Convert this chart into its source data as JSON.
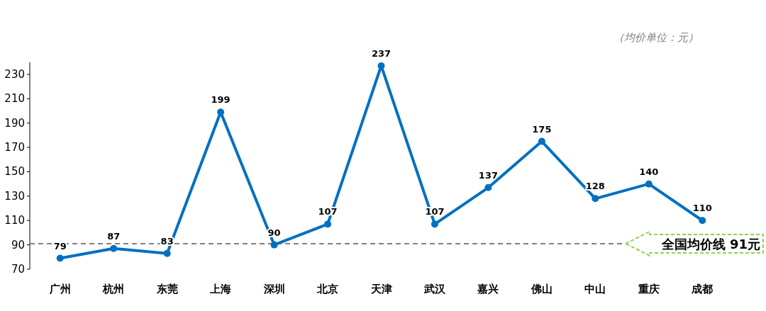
{
  "chart_data": {
    "type": "line",
    "categories": [
      "广州",
      "杭州",
      "东莞",
      "上海",
      "深圳",
      "北京",
      "天津",
      "武汉",
      "嘉兴",
      "佛山",
      "中山",
      "重庆",
      "成都"
    ],
    "series": [
      {
        "color": "#0070c0",
        "values": [
          79,
          87,
          83,
          199,
          90,
          107,
          237,
          107,
          137,
          175,
          128,
          140,
          110
        ]
      }
    ],
    "ylim": [
      70,
      240
    ],
    "yticks": [
      70,
      90,
      110,
      130,
      150,
      170,
      190,
      210,
      230
    ],
    "marker": "circle",
    "line_style": "solid",
    "data_labels": true,
    "grid": false,
    "ref_lines": [
      {
        "axis": "y",
        "value": 91,
        "label": "全国均价线  91元",
        "color": "#7f7f7f",
        "line_style": "dashed"
      }
    ],
    "annotations": [
      "（均价单位：元）"
    ]
  }
}
